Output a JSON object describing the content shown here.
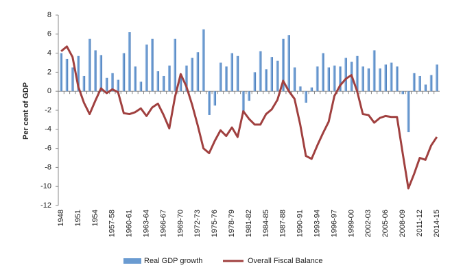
{
  "chart_data": {
    "type": "combo",
    "y_label": "Per cent of GDP",
    "categories": [
      "1948",
      null,
      null,
      "1951",
      null,
      null,
      "1954",
      null,
      null,
      "1957-58",
      null,
      null,
      "1960-61",
      null,
      null,
      "1963-64",
      null,
      null,
      "1966-67",
      null,
      null,
      "1969-70",
      null,
      null,
      "1972-73",
      null,
      null,
      "1975-76",
      null,
      null,
      "1978-79",
      null,
      null,
      "1981-82",
      null,
      null,
      "1984-85",
      null,
      null,
      "1987-88",
      null,
      null,
      "1990-91",
      null,
      null,
      "1993-94",
      null,
      null,
      "1996-97",
      null,
      null,
      "1999-00",
      null,
      null,
      "2002-03",
      null,
      null,
      "2005-06",
      null,
      null,
      "2008-09",
      null,
      null,
      "2011-12",
      null,
      null,
      "2014-15"
    ],
    "series": [
      {
        "name": "Real GDP growth",
        "type": "bar",
        "color": "#6a9bd1",
        "values": [
          4.0,
          3.4,
          2.5,
          3.7,
          1.6,
          5.5,
          4.3,
          3.8,
          1.4,
          1.9,
          1.2,
          4.0,
          6.2,
          2.6,
          1.0,
          4.9,
          5.5,
          2.1,
          1.6,
          2.7,
          5.5,
          1.8,
          2.7,
          3.5,
          4.1,
          6.5,
          -2.5,
          -1.5,
          3.0,
          2.6,
          4.0,
          3.7,
          -2.2,
          -1.0,
          2.0,
          4.2,
          2.3,
          3.6,
          3.2,
          5.5,
          5.9,
          2.5,
          0.5,
          -1.2,
          0.4,
          2.6,
          4.0,
          2.5,
          2.7,
          2.6,
          3.5,
          3.1,
          3.7,
          2.6,
          2.4,
          4.3,
          2.4,
          2.8,
          3.0,
          2.6,
          -0.3,
          -4.3,
          1.9,
          1.6,
          0.7,
          1.7,
          2.8
        ]
      },
      {
        "name": "Overall Fiscal Balance",
        "type": "line",
        "color": "#a0403f",
        "values": [
          4.2,
          4.7,
          3.6,
          0.5,
          -1.2,
          -2.4,
          -1.0,
          0.3,
          -0.2,
          0.2,
          -0.1,
          -2.3,
          -2.4,
          -2.2,
          -1.8,
          -2.6,
          -1.7,
          -1.3,
          -2.5,
          -3.9,
          -0.6,
          1.8,
          0.5,
          -1.4,
          -3.6,
          -6.0,
          -6.5,
          -5.2,
          -4.1,
          -4.7,
          -3.8,
          -4.8,
          -2.1,
          -2.9,
          -3.5,
          -3.5,
          -2.4,
          -1.9,
          -0.9,
          1.1,
          0.0,
          -0.8,
          -3.5,
          -6.8,
          -7.1,
          -5.7,
          -4.4,
          -3.2,
          -0.5,
          0.6,
          1.3,
          1.7,
          0.0,
          -2.4,
          -2.5,
          -3.3,
          -2.8,
          -2.6,
          -2.7,
          -2.7,
          -6.5,
          -10.2,
          -8.7,
          -7.0,
          -7.2,
          -5.7,
          -4.8
        ]
      }
    ],
    "ylim": [
      -12,
      8
    ],
    "yticks": [
      -12,
      -10,
      -8,
      -6,
      -4,
      -2,
      0,
      2,
      4,
      6,
      8
    ],
    "grid": false,
    "legend": "bottom"
  }
}
